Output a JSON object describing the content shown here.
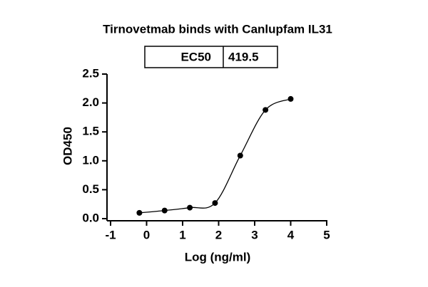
{
  "chart_data": {
    "type": "scatter",
    "title": "Tirnovetmab binds with Canlupfam IL31",
    "ec50_label": "EC50",
    "ec50_value": 419.5,
    "xlabel": "Log (ng/ml)",
    "ylabel": "OD450",
    "series": [
      {
        "color": "#000000",
        "x": [
          -0.2,
          0.5,
          1.2,
          1.9,
          2.6,
          3.3,
          4.0
        ],
        "values": [
          0.1,
          0.14,
          0.19,
          0.27,
          1.09,
          1.88,
          2.07
        ]
      }
    ],
    "xlim": [
      -1,
      5
    ],
    "xticks": [
      -1,
      0,
      1,
      2,
      3,
      4,
      5
    ],
    "ylim": [
      0,
      2.5
    ],
    "yticks": [
      {
        "value": 0,
        "label": "0.0"
      },
      0.5,
      {
        "value": 1,
        "label": "1.0"
      },
      1.5,
      {
        "value": 2,
        "label": "2.0"
      },
      2.5
    ]
  }
}
